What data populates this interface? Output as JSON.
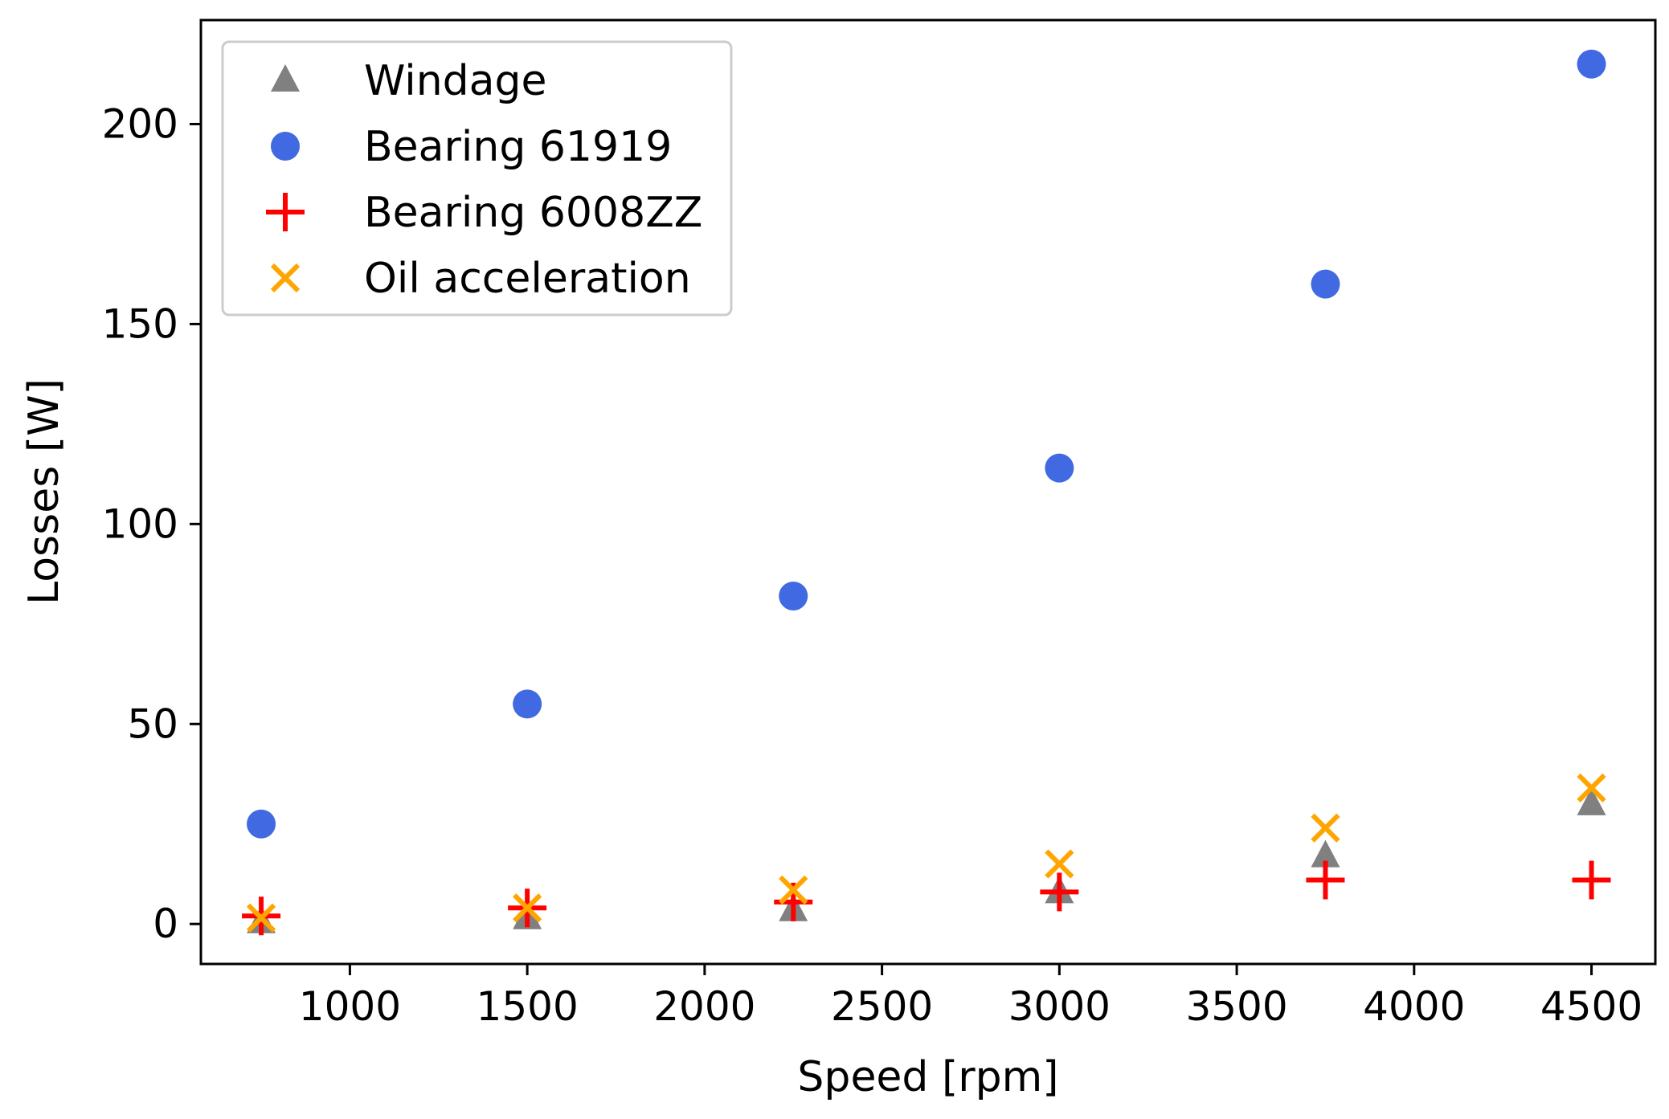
{
  "chart_data": {
    "type": "scatter",
    "title": "",
    "xlabel": "Speed [rpm]",
    "ylabel": "Losses [W]",
    "xlim": [
      580,
      4680
    ],
    "ylim": [
      -10,
      226
    ],
    "xticks": [
      1000,
      1500,
      2000,
      2500,
      3000,
      3500,
      4000,
      4500
    ],
    "yticks": [
      0,
      50,
      100,
      150,
      200
    ],
    "legend_position": "top-left",
    "grid": false,
    "series": [
      {
        "name": "Windage",
        "marker": "triangle",
        "color": "#808080",
        "x": [
          750,
          1500,
          2250,
          3000,
          3750,
          4500
        ],
        "y": [
          0.5,
          1.5,
          3.5,
          8.0,
          17.0,
          30.0
        ]
      },
      {
        "name": "Bearing 61919",
        "marker": "circle",
        "color": "#4169e1",
        "x": [
          750,
          1500,
          2250,
          3000,
          3750,
          4500
        ],
        "y": [
          25,
          55,
          82,
          114,
          160,
          215
        ]
      },
      {
        "name": "Bearing 6008ZZ",
        "marker": "plus",
        "color": "#ff0000",
        "x": [
          750,
          1500,
          2250,
          3000,
          3750,
          4500
        ],
        "y": [
          2,
          4,
          5.5,
          8,
          11,
          11
        ]
      },
      {
        "name": "Oil acceleration",
        "marker": "x",
        "color": "#ffa500",
        "x": [
          750,
          1500,
          2250,
          3000,
          3750,
          4500
        ],
        "y": [
          1.5,
          4,
          8.5,
          15,
          24,
          34
        ]
      }
    ]
  }
}
